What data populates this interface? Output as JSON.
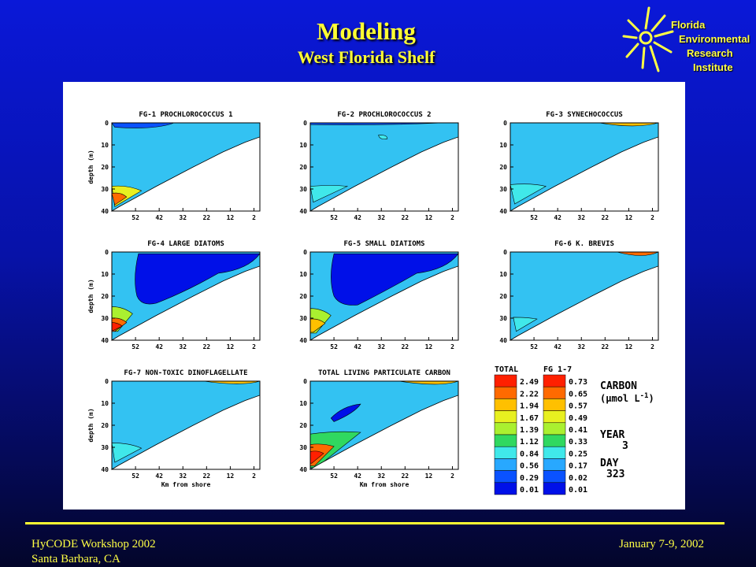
{
  "header": {
    "title": "Modeling",
    "subtitle": "West Florida Shelf"
  },
  "logo": {
    "lines": [
      "Florida",
      "Environmental",
      "Research",
      "Institute"
    ]
  },
  "footer": {
    "left_line1": "HyCODE Workshop 2002",
    "left_line2": "Santa Barbara, CA",
    "right": "January 7-9, 2002"
  },
  "colors": {
    "background": "#0712a8",
    "title": "#ffff33",
    "ocean": "#33c2f2",
    "scale": [
      "#0010e8",
      "#0a52ff",
      "#28a8ff",
      "#40e8ea",
      "#30d860",
      "#aaf030",
      "#e8f020",
      "#ffc000",
      "#ff6a00",
      "#ff2000"
    ]
  },
  "chart_data": [
    {
      "type": "heatmap",
      "title": "FG-1 PROCHLOROCOCCUS 1",
      "ylabel": "depth (m)",
      "xlabel": "",
      "x": [
        52,
        42,
        32,
        22,
        12,
        2
      ],
      "y": [
        0,
        10,
        20,
        30,
        40
      ],
      "ylim": [
        0,
        40
      ]
    },
    {
      "type": "heatmap",
      "title": "FG-2 PROCHLOROCOCCUS 2",
      "ylabel": "",
      "xlabel": "",
      "x": [
        52,
        42,
        32,
        22,
        12,
        2
      ],
      "y": [
        0,
        10,
        20,
        30,
        40
      ],
      "ylim": [
        0,
        40
      ]
    },
    {
      "type": "heatmap",
      "title": "FG-3 SYNECHOCOCCUS",
      "ylabel": "",
      "xlabel": "",
      "x": [
        52,
        42,
        32,
        22,
        12,
        2
      ],
      "y": [
        0,
        10,
        20,
        30,
        40
      ],
      "ylim": [
        0,
        40
      ]
    },
    {
      "type": "heatmap",
      "title": "FG-4 LARGE DIATOMS",
      "ylabel": "depth (m)",
      "xlabel": "",
      "x": [
        52,
        42,
        32,
        22,
        12,
        2
      ],
      "y": [
        0,
        10,
        20,
        30,
        40
      ],
      "ylim": [
        0,
        40
      ]
    },
    {
      "type": "heatmap",
      "title": "FG-5 SMALL DIATIOMS",
      "ylabel": "",
      "xlabel": "",
      "x": [
        52,
        42,
        32,
        22,
        12,
        2
      ],
      "y": [
        0,
        10,
        20,
        30,
        40
      ],
      "ylim": [
        0,
        40
      ]
    },
    {
      "type": "heatmap",
      "title": "FG-6 K. BREVIS",
      "ylabel": "",
      "xlabel": "",
      "x": [
        52,
        42,
        32,
        22,
        12,
        2
      ],
      "y": [
        0,
        10,
        20,
        30,
        40
      ],
      "ylim": [
        0,
        40
      ]
    },
    {
      "type": "heatmap",
      "title": "FG-7 NON-TOXIC DINOFLAGELLATE",
      "ylabel": "depth (m)",
      "xlabel": "Km from shore",
      "x": [
        52,
        42,
        32,
        22,
        12,
        2
      ],
      "y": [
        0,
        10,
        20,
        30,
        40
      ],
      "ylim": [
        0,
        40
      ]
    },
    {
      "type": "heatmap",
      "title": "TOTAL LIVING PARTICULATE CARBON",
      "ylabel": "",
      "xlabel": "Km from shore",
      "x": [
        52,
        42,
        32,
        22,
        12,
        2
      ],
      "y": [
        0,
        10,
        20,
        30,
        40
      ],
      "ylim": [
        0,
        40
      ]
    }
  ],
  "legend": {
    "total_header": "TOTAL",
    "fg_header": "FG 1-7",
    "total_values": [
      "2.49",
      "2.22",
      "1.94",
      "1.67",
      "1.39",
      "1.12",
      "0.84",
      "0.56",
      "0.29",
      "0.01"
    ],
    "fg_values": [
      "0.73",
      "0.65",
      "0.57",
      "0.49",
      "0.41",
      "0.33",
      "0.25",
      "0.17",
      "0.02",
      "0.01"
    ],
    "carbon_label": "CARBON",
    "units_prefix": "(",
    "units_mu": "μ",
    "units_mol": "mol L",
    "units_exp": "-1",
    "units_suffix": ")",
    "year_label": "YEAR",
    "year_value": "3",
    "day_label": "DAY",
    "day_value": "323"
  }
}
